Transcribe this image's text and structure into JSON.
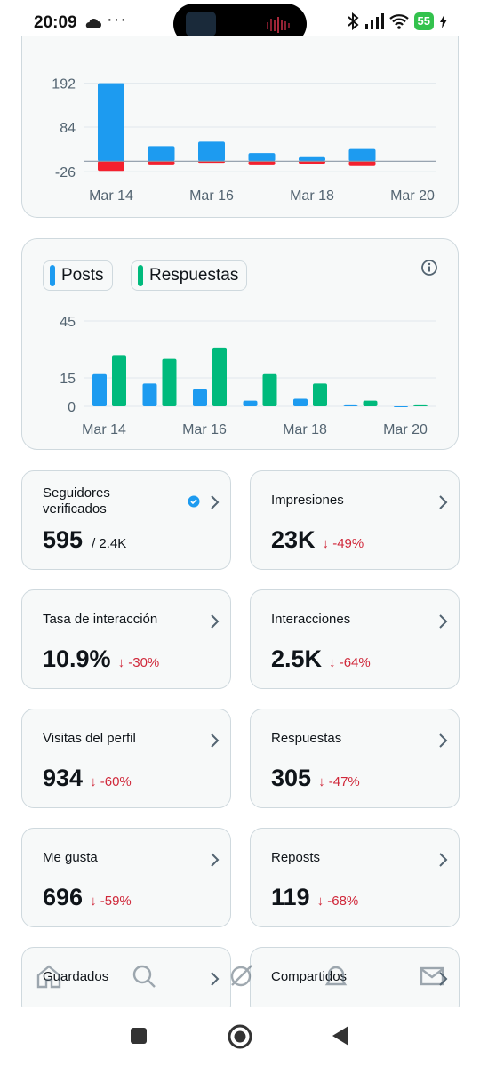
{
  "status_bar": {
    "time": "20:09",
    "battery": "55",
    "icons": [
      "cloud-icon",
      "more-dots-icon",
      "bluetooth-icon",
      "signal-icon",
      "wifi-icon",
      "charging-icon"
    ]
  },
  "chart_data": [
    {
      "type": "bar",
      "categories": [
        "Mar 14",
        "Mar 15",
        "Mar 16",
        "Mar 17",
        "Mar 18",
        "Mar 19",
        "Mar 20"
      ],
      "series": [
        {
          "values": [
            192,
            37,
            48,
            20,
            10,
            30,
            0
          ],
          "color": "#1d9bf0"
        },
        {
          "values": [
            -24,
            -10,
            -4,
            -10,
            -6,
            -12,
            0
          ],
          "color": "#f4212e"
        }
      ],
      "yticks": [
        192,
        84,
        -26
      ],
      "ylim": [
        -30,
        200
      ],
      "xticks": [
        "Mar 14",
        "Mar 16",
        "Mar 18",
        "Mar 20"
      ],
      "zero_line": true,
      "grid": true
    },
    {
      "type": "bar",
      "categories": [
        "Mar 14",
        "Mar 15",
        "Mar 16",
        "Mar 17",
        "Mar 18",
        "Mar 19",
        "Mar 20"
      ],
      "series": [
        {
          "name": "Posts",
          "values": [
            17,
            12,
            9,
            3,
            4,
            1,
            0
          ],
          "color": "#1d9bf0"
        },
        {
          "name": "Respuestas",
          "values": [
            27,
            25,
            31,
            17,
            12,
            3,
            1
          ],
          "color": "#00ba7c"
        }
      ],
      "yticks": [
        45,
        15,
        0
      ],
      "ylim": [
        0,
        45
      ],
      "xticks": [
        "Mar 14",
        "Mar 16",
        "Mar 18",
        "Mar 20"
      ],
      "legend": "top-left",
      "grid": true
    }
  ],
  "legend": {
    "posts": "Posts",
    "respuestas": "Respuestas"
  },
  "stats": [
    {
      "label": "Seguidores verificados",
      "value": "595",
      "sub": "/ 2.4K",
      "verified": true
    },
    {
      "label": "Impresiones",
      "value": "23K",
      "delta": "↓ -49%"
    },
    {
      "label": "Tasa de interacción",
      "value": "10.9%",
      "delta": "↓ -30%"
    },
    {
      "label": "Interacciones",
      "value": "2.5K",
      "delta": "↓ -64%"
    },
    {
      "label": "Visitas del perfil",
      "value": "934",
      "delta": "↓ -60%"
    },
    {
      "label": "Respuestas",
      "value": "305",
      "delta": "↓ -47%"
    },
    {
      "label": "Me gusta",
      "value": "696",
      "delta": "↓ -59%"
    },
    {
      "label": "Reposts",
      "value": "119",
      "delta": "↓ -68%"
    },
    {
      "label": "Guardados",
      "value": ""
    },
    {
      "label": "Compartidos",
      "value": ""
    }
  ],
  "colors": {
    "accent": "#1d9bf0",
    "green": "#00ba7c",
    "negative": "#f4212e",
    "delta_red": "#d0283a"
  },
  "bottom_nav": [
    "home-icon",
    "search-icon",
    "grok-icon",
    "notifications-icon",
    "messages-icon"
  ],
  "system_nav": [
    "recents-square-icon",
    "home-circle-icon",
    "back-triangle-icon"
  ]
}
